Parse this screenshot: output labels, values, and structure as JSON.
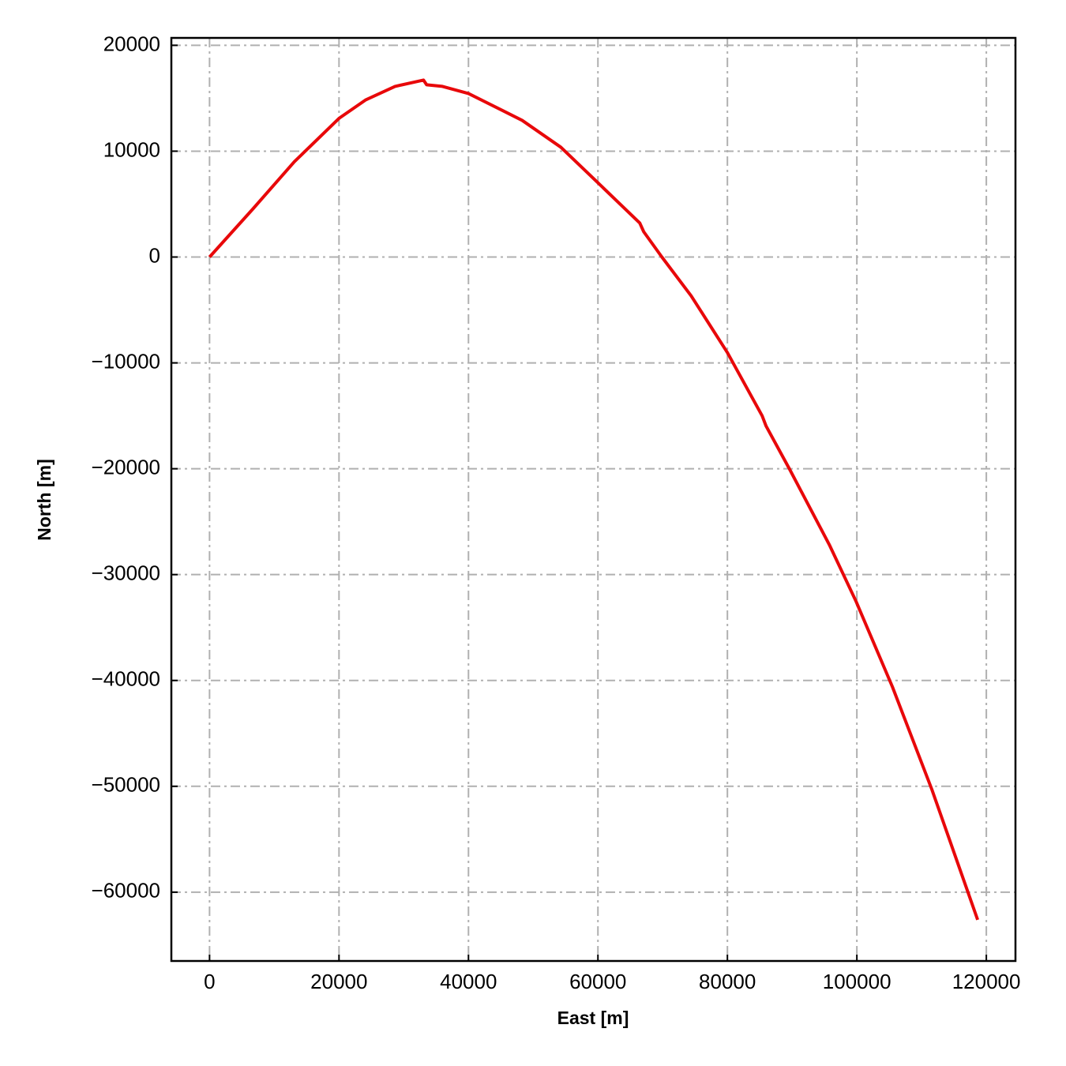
{
  "chart_data": {
    "type": "line",
    "xlabel": "East [m]",
    "ylabel": "North [m]",
    "x": [
      0,
      6707,
      13100,
      20000,
      24146,
      28659,
      33049,
      33537,
      35976,
      40000,
      48293,
      54268,
      60000,
      66463,
      67073,
      69878,
      74390,
      80000,
      85366,
      85976,
      89634,
      95732,
      99878,
      105488,
      111585,
      118659
    ],
    "series": [
      {
        "color": "#e8080a",
        "values": [
          0,
          4552,
          9000,
          13100,
          14851,
          16119,
          16716,
          16269,
          16119,
          15448,
          12910,
          10373,
          7015,
          3209,
          2388,
          0,
          -3657,
          -9030,
          -15000,
          -15970,
          -20075,
          -27164,
          -32537,
          -40597,
          -50299,
          -62612
        ]
      }
    ],
    "xlim": [
      -5900,
      124500
    ],
    "ylim": [
      -66500,
      20700
    ],
    "xticks": [
      0,
      20000,
      40000,
      60000,
      80000,
      100000,
      120000
    ],
    "yticks": [
      {
        "value": -60000,
        "label": "−60000"
      },
      {
        "value": -50000,
        "label": "−50000"
      },
      {
        "value": -40000,
        "label": "−40000"
      },
      {
        "value": -30000,
        "label": "−30000"
      },
      {
        "value": -20000,
        "label": "−20000"
      },
      {
        "value": -10000,
        "label": "−10000"
      },
      0,
      10000,
      20000
    ],
    "grid": true
  }
}
